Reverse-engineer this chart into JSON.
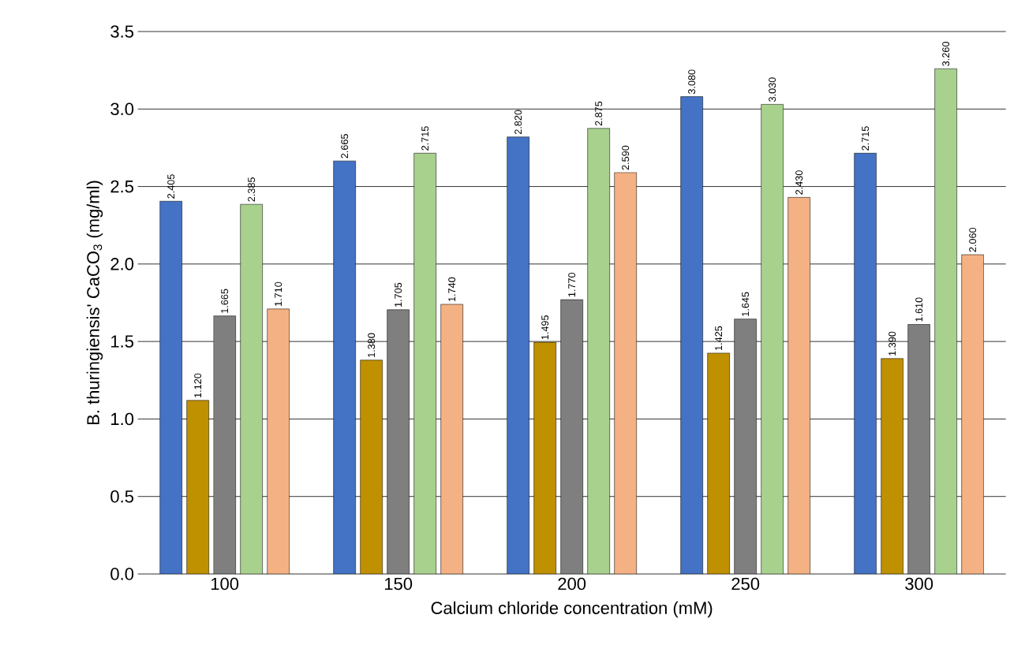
{
  "chart_data": {
    "type": "bar",
    "xlabel": "Calcium chloride concentration (mM)",
    "ylabel": "B. thuringiensis' CaCO$_{3}$ (mg/ml)",
    "categories": [
      "100",
      "150",
      "200",
      "250",
      "300"
    ],
    "ylim": [
      0,
      3.5
    ],
    "yticks": [
      {
        "value": 0,
        "label": "0.0"
      },
      {
        "value": 0.5,
        "label": "0.5"
      },
      {
        "value": 1,
        "label": "1.0"
      },
      {
        "value": 1.5,
        "label": "1.5"
      },
      {
        "value": 2,
        "label": "2.0"
      },
      {
        "value": 2.5,
        "label": "2.5"
      },
      {
        "value": 3,
        "label": "3.0"
      },
      {
        "value": 3.5,
        "label": "3.5"
      }
    ],
    "grid": "y",
    "series": [
      {
        "color": "#4472c4",
        "values": [
          2.405,
          2.665,
          2.82,
          3.08,
          2.715
        ],
        "value_labels": [
          "2.405",
          "2.665",
          "2.820",
          "3.080",
          "2.715"
        ]
      },
      {
        "color": "#bf9000",
        "values": [
          1.12,
          1.38,
          1.495,
          1.425,
          1.39
        ],
        "value_labels": [
          "1.120",
          "1.380",
          "1.495",
          "1.425",
          "1.390"
        ]
      },
      {
        "color": "#7f7f7f",
        "values": [
          1.665,
          1.705,
          1.77,
          1.645,
          1.61
        ],
        "value_labels": [
          "1.665",
          "1.705",
          "1.770",
          "1.645",
          "1.610"
        ]
      },
      {
        "color": "#a9d18e",
        "values": [
          2.385,
          2.715,
          2.875,
          3.03,
          3.26
        ],
        "value_labels": [
          "2.385",
          "2.715",
          "2.875",
          "3.030",
          "3.260"
        ]
      },
      {
        "color": "#f4b183",
        "values": [
          1.71,
          1.74,
          2.59,
          2.43,
          2.06
        ],
        "value_labels": [
          "1.710",
          "1.740",
          "2.590",
          "2.430",
          "2.060"
        ]
      }
    ]
  }
}
